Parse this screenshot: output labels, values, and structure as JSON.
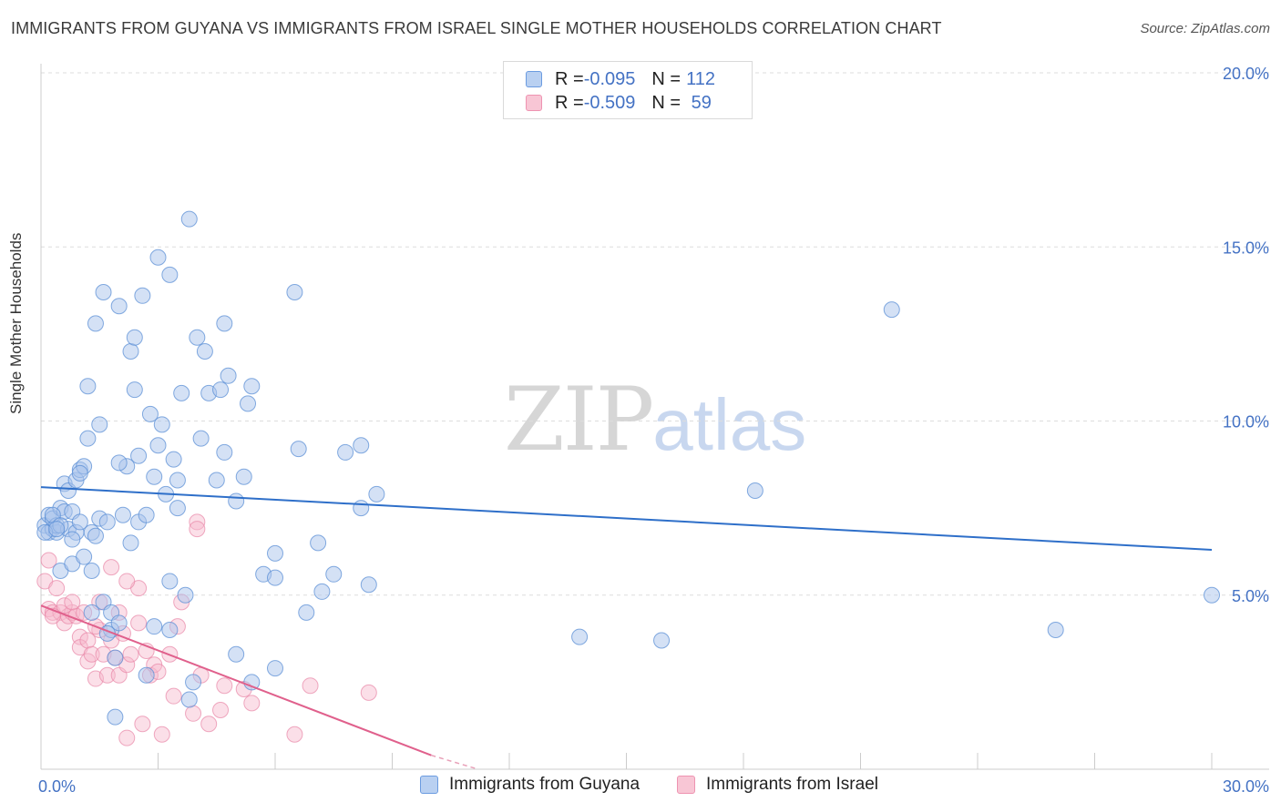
{
  "title": "IMMIGRANTS FROM GUYANA VS IMMIGRANTS FROM ISRAEL SINGLE MOTHER HOUSEHOLDS CORRELATION CHART",
  "source": "Source: ZipAtlas.com",
  "watermark": {
    "zip": "ZIP",
    "atlas": "atlas"
  },
  "legend": {
    "rows": [
      {
        "r_label": "R = ",
        "r_value": "-0.095",
        "n_label": "N = ",
        "n_value": "112"
      },
      {
        "r_label": "R = ",
        "r_value": "-0.509",
        "n_label": "N = ",
        "n_value": " 59"
      }
    ]
  },
  "colors": {
    "guyana_fill": "#a9c4ec",
    "guyana_stroke": "#5b8fd6",
    "guyana_line": "#2e6fc9",
    "israel_fill": "#f6b9cb",
    "israel_stroke": "#e886a6",
    "israel_line": "#e0608c",
    "tick_label": "#4472c4",
    "grid": "#dddddd"
  },
  "chart_data": {
    "type": "scatter",
    "title": "IMMIGRANTS FROM GUYANA VS IMMIGRANTS FROM ISRAEL SINGLE MOTHER HOUSEHOLDS CORRELATION CHART",
    "xlabel": "",
    "ylabel": "Single Mother Households",
    "xlim": [
      0,
      30
    ],
    "ylim": [
      0,
      20
    ],
    "x_tick_labels": [
      "0.0%",
      "30.0%"
    ],
    "y_tick_labels": [
      "5.0%",
      "10.0%",
      "15.0%",
      "20.0%"
    ],
    "y_ticks": [
      5,
      10,
      15,
      20
    ],
    "x_ticks": [
      0,
      3,
      6,
      9,
      12,
      15,
      18,
      21,
      24,
      27,
      30
    ],
    "series": [
      {
        "name": "Immigrants from Guyana",
        "r": -0.095,
        "n": 112,
        "trend": {
          "x": [
            0,
            30
          ],
          "y": [
            8.1,
            6.3
          ]
        },
        "points": [
          [
            0.1,
            7.0
          ],
          [
            0.2,
            7.3
          ],
          [
            0.2,
            6.8
          ],
          [
            0.3,
            6.9
          ],
          [
            0.3,
            7.2
          ],
          [
            0.4,
            6.8
          ],
          [
            0.4,
            7.0
          ],
          [
            0.5,
            7.5
          ],
          [
            0.5,
            5.7
          ],
          [
            0.6,
            8.2
          ],
          [
            0.6,
            7.4
          ],
          [
            0.7,
            8.0
          ],
          [
            0.7,
            6.9
          ],
          [
            0.8,
            5.9
          ],
          [
            0.8,
            7.4
          ],
          [
            0.9,
            8.3
          ],
          [
            0.9,
            6.8
          ],
          [
            1.0,
            8.6
          ],
          [
            1.0,
            7.1
          ],
          [
            1.1,
            8.7
          ],
          [
            1.1,
            6.1
          ],
          [
            1.2,
            9.5
          ],
          [
            1.2,
            11.0
          ],
          [
            1.3,
            6.8
          ],
          [
            1.3,
            5.7
          ],
          [
            1.4,
            6.7
          ],
          [
            1.4,
            12.8
          ],
          [
            1.5,
            7.2
          ],
          [
            1.5,
            9.9
          ],
          [
            1.6,
            4.8
          ],
          [
            1.6,
            13.7
          ],
          [
            1.7,
            7.1
          ],
          [
            1.8,
            4.0
          ],
          [
            1.8,
            4.5
          ],
          [
            1.9,
            3.2
          ],
          [
            1.9,
            1.5
          ],
          [
            2.0,
            13.3
          ],
          [
            2.0,
            4.2
          ],
          [
            2.1,
            7.3
          ],
          [
            2.2,
            8.7
          ],
          [
            2.3,
            6.5
          ],
          [
            2.3,
            12.0
          ],
          [
            2.4,
            12.4
          ],
          [
            2.4,
            10.9
          ],
          [
            2.5,
            7.1
          ],
          [
            2.6,
            13.6
          ],
          [
            2.7,
            7.3
          ],
          [
            2.8,
            10.2
          ],
          [
            2.9,
            8.4
          ],
          [
            2.9,
            4.1
          ],
          [
            3.0,
            14.7
          ],
          [
            3.1,
            9.9
          ],
          [
            3.2,
            7.9
          ],
          [
            3.3,
            14.2
          ],
          [
            3.3,
            5.4
          ],
          [
            3.4,
            8.9
          ],
          [
            3.5,
            8.3
          ],
          [
            3.5,
            7.5
          ],
          [
            3.6,
            10.8
          ],
          [
            3.7,
            5.0
          ],
          [
            3.8,
            15.8
          ],
          [
            4.0,
            12.4
          ],
          [
            4.1,
            9.5
          ],
          [
            4.2,
            12.0
          ],
          [
            4.3,
            10.8
          ],
          [
            4.5,
            8.3
          ],
          [
            4.6,
            10.9
          ],
          [
            4.7,
            12.8
          ],
          [
            4.7,
            9.1
          ],
          [
            4.8,
            11.3
          ],
          [
            5.0,
            7.7
          ],
          [
            5.0,
            3.3
          ],
          [
            5.2,
            8.4
          ],
          [
            5.3,
            10.5
          ],
          [
            5.4,
            11.0
          ],
          [
            5.4,
            2.5
          ],
          [
            5.7,
            5.6
          ],
          [
            6.0,
            6.2
          ],
          [
            6.0,
            5.5
          ],
          [
            6.0,
            2.9
          ],
          [
            6.5,
            13.7
          ],
          [
            6.6,
            9.2
          ],
          [
            6.8,
            4.5
          ],
          [
            7.1,
            6.5
          ],
          [
            7.2,
            5.1
          ],
          [
            7.5,
            5.6
          ],
          [
            7.8,
            9.1
          ],
          [
            8.2,
            9.3
          ],
          [
            8.2,
            7.5
          ],
          [
            8.4,
            5.3
          ],
          [
            8.6,
            7.9
          ],
          [
            0.1,
            6.8
          ],
          [
            0.3,
            7.3
          ],
          [
            0.5,
            7.0
          ],
          [
            1.0,
            8.5
          ],
          [
            2.0,
            8.8
          ],
          [
            2.5,
            9.0
          ],
          [
            3.0,
            9.3
          ],
          [
            3.8,
            2.0
          ],
          [
            3.9,
            2.5
          ],
          [
            0.8,
            6.6
          ],
          [
            0.4,
            6.9
          ],
          [
            1.3,
            4.5
          ],
          [
            2.7,
            2.7
          ],
          [
            3.3,
            4.0
          ],
          [
            13.8,
            3.8
          ],
          [
            15.9,
            3.7
          ],
          [
            18.3,
            8.0
          ],
          [
            21.8,
            13.2
          ],
          [
            26.0,
            4.0
          ],
          [
            30.0,
            5.0
          ],
          [
            1.7,
            3.9
          ]
        ]
      },
      {
        "name": "Immigrants from Israel",
        "r": -0.509,
        "n": 59,
        "trend": {
          "x": [
            0,
            10
          ],
          "y": [
            4.7,
            0.4
          ]
        },
        "trend_dashed": {
          "x": [
            10,
            11.2
          ],
          "y": [
            0.4,
            0.0
          ]
        },
        "points": [
          [
            0.1,
            5.4
          ],
          [
            0.2,
            6.0
          ],
          [
            0.2,
            4.6
          ],
          [
            0.3,
            4.5
          ],
          [
            0.4,
            5.2
          ],
          [
            0.5,
            4.5
          ],
          [
            0.6,
            4.2
          ],
          [
            0.7,
            4.4
          ],
          [
            0.8,
            4.5
          ],
          [
            0.9,
            4.4
          ],
          [
            1.0,
            3.8
          ],
          [
            1.0,
            3.5
          ],
          [
            1.1,
            4.5
          ],
          [
            1.2,
            3.1
          ],
          [
            1.2,
            3.7
          ],
          [
            1.3,
            3.3
          ],
          [
            1.4,
            2.6
          ],
          [
            1.5,
            4.8
          ],
          [
            1.5,
            4.0
          ],
          [
            1.6,
            3.3
          ],
          [
            1.7,
            2.7
          ],
          [
            1.8,
            3.7
          ],
          [
            1.8,
            5.8
          ],
          [
            1.9,
            3.2
          ],
          [
            2.0,
            2.7
          ],
          [
            2.0,
            4.5
          ],
          [
            2.1,
            3.9
          ],
          [
            2.2,
            3.0
          ],
          [
            2.2,
            0.9
          ],
          [
            2.3,
            3.3
          ],
          [
            2.5,
            4.2
          ],
          [
            2.5,
            5.2
          ],
          [
            2.6,
            1.3
          ],
          [
            2.7,
            3.4
          ],
          [
            2.8,
            2.7
          ],
          [
            2.9,
            3.0
          ],
          [
            3.0,
            2.8
          ],
          [
            3.1,
            1.0
          ],
          [
            3.3,
            3.3
          ],
          [
            3.4,
            2.1
          ],
          [
            3.5,
            4.1
          ],
          [
            3.6,
            4.8
          ],
          [
            3.9,
            1.6
          ],
          [
            4.0,
            7.1
          ],
          [
            4.0,
            6.9
          ],
          [
            4.1,
            2.7
          ],
          [
            4.3,
            1.3
          ],
          [
            4.6,
            1.7
          ],
          [
            4.7,
            2.4
          ],
          [
            5.2,
            2.3
          ],
          [
            5.4,
            1.9
          ],
          [
            6.5,
            1.0
          ],
          [
            6.9,
            2.4
          ],
          [
            8.4,
            2.2
          ],
          [
            0.3,
            4.4
          ],
          [
            0.6,
            4.7
          ],
          [
            1.4,
            4.1
          ],
          [
            0.8,
            4.8
          ],
          [
            2.2,
            5.4
          ]
        ]
      }
    ]
  }
}
